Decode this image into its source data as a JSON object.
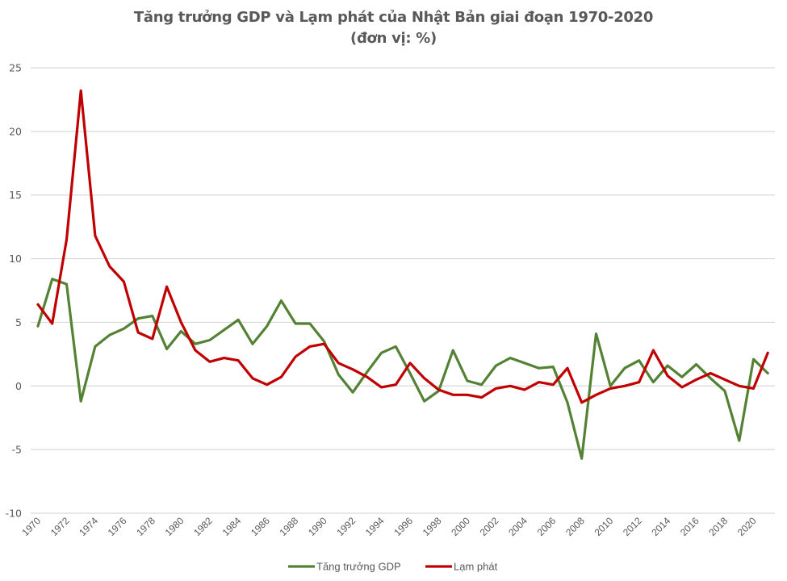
{
  "chart_data": {
    "type": "line",
    "title": "Tăng trưởng GDP và Lạm phát của Nhật Bản giai đoạn 1970-2020",
    "subtitle": "(đơn vị: %)",
    "xlabel": "",
    "ylabel": "",
    "ylim": [
      -10,
      25
    ],
    "yticks": [
      25,
      20,
      15,
      10,
      5,
      0,
      -5,
      -10
    ],
    "xticks": [
      "1970",
      "1972",
      "1974",
      "1976",
      "1978",
      "1980",
      "1982",
      "1984",
      "1986",
      "1988",
      "1990",
      "1992",
      "1994",
      "1996",
      "1998",
      "2000",
      "2002",
      "2004",
      "2006",
      "2008",
      "2010",
      "2012",
      "2014",
      "2016",
      "2018",
      "2020"
    ],
    "grid": true,
    "legend_position": "bottom",
    "x": [
      1970,
      1971,
      1972,
      1973,
      1974,
      1975,
      1976,
      1977,
      1978,
      1979,
      1980,
      1981,
      1982,
      1983,
      1984,
      1985,
      1986,
      1987,
      1988,
      1989,
      1990,
      1991,
      1992,
      1993,
      1994,
      1995,
      1996,
      1997,
      1998,
      1999,
      2000,
      2001,
      2002,
      2003,
      2004,
      2005,
      2006,
      2007,
      2008,
      2009,
      2010,
      2011,
      2012,
      2013,
      2014,
      2015,
      2016,
      2017,
      2018,
      2019,
      2020,
      2021
    ],
    "series": [
      {
        "name": "Tăng trưởng GDP",
        "color": "#548235",
        "values": [
          4.7,
          8.4,
          8.0,
          -1.2,
          3.1,
          4.0,
          4.5,
          5.3,
          5.5,
          2.9,
          4.3,
          3.3,
          3.6,
          4.4,
          5.2,
          3.3,
          4.7,
          6.7,
          4.9,
          4.9,
          3.5,
          0.9,
          -0.5,
          1.1,
          2.6,
          3.1,
          1.0,
          -1.2,
          -0.4,
          2.8,
          0.4,
          0.1,
          1.6,
          2.2,
          1.8,
          1.4,
          1.5,
          -1.3,
          -5.7,
          4.1,
          0.0,
          1.4,
          2.0,
          0.3,
          1.6,
          0.7,
          1.7,
          0.6,
          -0.4,
          -4.3,
          2.1,
          1.0
        ]
      },
      {
        "name": "Lạm phát",
        "color": "#C00000",
        "values": [
          6.4,
          4.9,
          11.5,
          23.2,
          11.8,
          9.4,
          8.2,
          4.2,
          3.7,
          7.8,
          5.0,
          2.8,
          1.9,
          2.2,
          2.0,
          0.6,
          0.1,
          0.7,
          2.3,
          3.1,
          3.3,
          1.8,
          1.3,
          0.7,
          -0.1,
          0.1,
          1.8,
          0.6,
          -0.3,
          -0.7,
          -0.7,
          -0.9,
          -0.2,
          0.0,
          -0.3,
          0.3,
          0.1,
          1.4,
          -1.3,
          -0.7,
          -0.2,
          0.0,
          0.3,
          2.8,
          0.8,
          -0.1,
          0.5,
          1.0,
          0.5,
          0.0,
          -0.2,
          2.6
        ]
      }
    ]
  }
}
